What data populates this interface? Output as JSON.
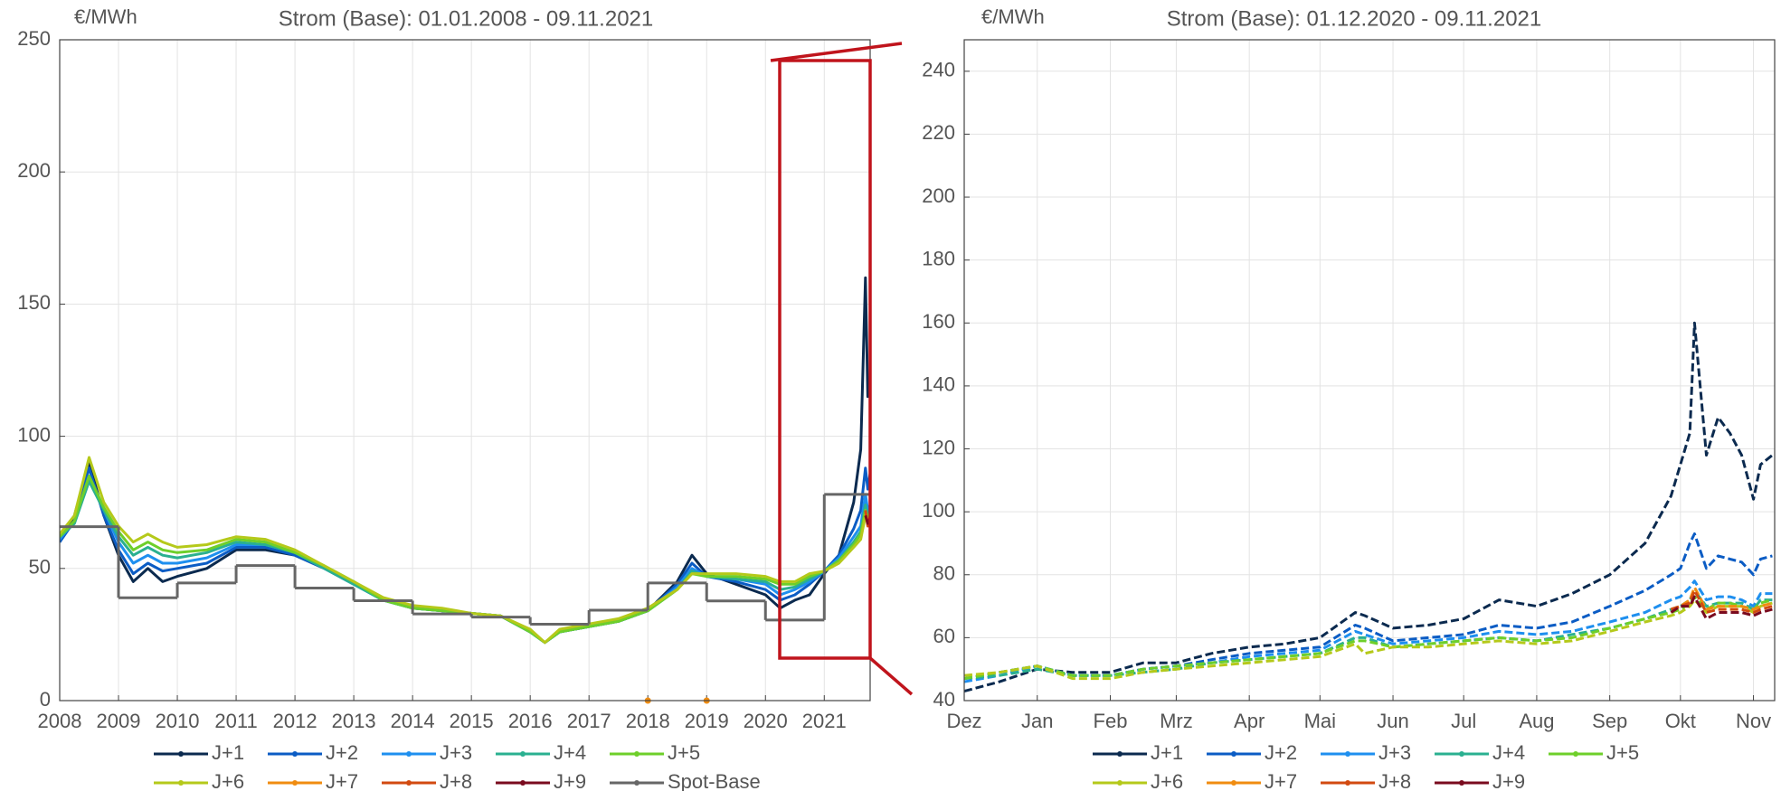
{
  "chart_data": [
    {
      "type": "line",
      "title": "Strom (Base): 01.01.2008 - 09.11.2021",
      "ylabel": "€/MWh",
      "xlim": [
        2008,
        2021.78
      ],
      "xticks": [
        2008,
        2009,
        2010,
        2011,
        2012,
        2013,
        2014,
        2015,
        2016,
        2017,
        2018,
        2019,
        2020,
        2021
      ],
      "ylim": [
        0,
        250
      ],
      "yticks": [
        0,
        50,
        100,
        150,
        200,
        250
      ],
      "grid": true,
      "line_style": "solid",
      "legend": "bottom",
      "x": [
        2008,
        2008.25,
        2008.5,
        2008.75,
        2009,
        2009.25,
        2009.5,
        2009.75,
        2010,
        2010.5,
        2011,
        2011.5,
        2012,
        2012.5,
        2013,
        2013.5,
        2014,
        2014.5,
        2015,
        2015.5,
        2016,
        2016.25,
        2016.5,
        2017,
        2017.5,
        2018,
        2018.5,
        2018.75,
        2019,
        2019.5,
        2020,
        2020.25,
        2020.5,
        2020.75,
        2021,
        2021.25,
        2021.5,
        2021.62,
        2021.7,
        2021.74,
        2021.78
      ],
      "series": [
        {
          "name": "J+1",
          "color": "#0b2a4f",
          "values": [
            60,
            70,
            90,
            70,
            55,
            45,
            50,
            45,
            47,
            50,
            57,
            57,
            55,
            50,
            45,
            38,
            36,
            34,
            33,
            32,
            26,
            22,
            26,
            28,
            30,
            34,
            45,
            55,
            48,
            44,
            40,
            35,
            38,
            40,
            48,
            55,
            75,
            95,
            160,
            115,
            118
          ]
        },
        {
          "name": "J+2",
          "color": "#0b5cc4",
          "values": [
            60,
            68,
            88,
            70,
            57,
            48,
            52,
            49,
            50,
            52,
            58,
            58,
            55,
            50,
            44,
            38,
            35,
            34,
            33,
            32,
            26,
            22,
            26,
            28,
            30,
            34,
            44,
            52,
            47,
            45,
            42,
            38,
            40,
            44,
            49,
            55,
            65,
            72,
            88,
            80,
            86
          ]
        },
        {
          "name": "J+3",
          "color": "#1e8fef",
          "values": [
            61,
            68,
            85,
            72,
            60,
            52,
            55,
            52,
            52,
            54,
            59,
            59,
            56,
            50,
            44,
            38,
            35,
            34,
            33,
            32,
            26,
            22,
            26,
            28,
            30,
            34,
            43,
            50,
            47,
            46,
            44,
            40,
            42,
            45,
            49,
            54,
            62,
            66,
            78,
            72,
            74
          ]
        },
        {
          "name": "J+4",
          "color": "#2ab090",
          "values": [
            62,
            67,
            83,
            72,
            62,
            55,
            58,
            55,
            54,
            56,
            60,
            59,
            56,
            50,
            44,
            38,
            35,
            34,
            33,
            32,
            26,
            22,
            26,
            28,
            30,
            34,
            42,
            49,
            47,
            46,
            45,
            42,
            43,
            46,
            49,
            53,
            60,
            64,
            74,
            70,
            72
          ]
        },
        {
          "name": "J+5",
          "color": "#6ecf2a",
          "values": [
            62,
            68,
            85,
            73,
            64,
            57,
            60,
            57,
            56,
            57,
            61,
            60,
            56,
            51,
            45,
            38,
            35,
            34,
            33,
            32,
            26,
            22,
            26,
            28,
            30,
            34,
            42,
            48,
            47,
            47,
            46,
            44,
            44,
            47,
            49,
            53,
            59,
            63,
            72,
            69,
            71
          ]
        },
        {
          "name": "J+6",
          "color": "#b5c91a",
          "values": [
            63,
            70,
            92,
            75,
            66,
            60,
            63,
            60,
            58,
            59,
            62,
            61,
            57,
            51,
            45,
            39,
            36,
            35,
            33,
            32,
            27,
            22,
            27,
            29,
            31,
            35,
            42,
            48,
            48,
            48,
            47,
            45,
            45,
            48,
            49,
            52,
            58,
            61,
            70,
            68,
            70
          ]
        },
        {
          "name": "J+7",
          "color": "#f08c10",
          "x": [
            2018,
            2018.5,
            2019
          ],
          "values": [
            0,
            null,
            0
          ]
        },
        {
          "name": "J+8",
          "color": "#d24a10",
          "x": [
            2021.7,
            2021.74,
            2021.78
          ],
          "values": [
            72,
            66,
            70
          ]
        },
        {
          "name": "J+9",
          "color": "#7a0a1e",
          "x": [
            2021.7,
            2021.74,
            2021.78
          ],
          "values": [
            70,
            67,
            69
          ]
        },
        {
          "name": "Spot-Base",
          "color": "#666666",
          "step": "post",
          "x": [
            2008,
            2009,
            2010,
            2011,
            2012,
            2013,
            2014,
            2015,
            2016,
            2017,
            2018,
            2019,
            2020,
            2021
          ],
          "values": [
            65.8,
            38.9,
            44.5,
            51.1,
            42.6,
            37.8,
            32.8,
            31.6,
            28.9,
            34.2,
            44.5,
            37.7,
            30.5,
            78
          ]
        }
      ]
    },
    {
      "type": "line",
      "title": "Strom (Base): 01.12.2020 - 09.11.2021",
      "ylabel": "€/MWh",
      "xlim": [
        0,
        344
      ],
      "xticks": [
        {
          "value": 0,
          "label": "Dez"
        },
        {
          "value": 31,
          "label": "Jan"
        },
        {
          "value": 62,
          "label": "Feb"
        },
        {
          "value": 90,
          "label": "Mrz"
        },
        {
          "value": 121,
          "label": "Apr"
        },
        {
          "value": 151,
          "label": "Mai"
        },
        {
          "value": 182,
          "label": "Jun"
        },
        {
          "value": 212,
          "label": "Jul"
        },
        {
          "value": 243,
          "label": "Aug"
        },
        {
          "value": 274,
          "label": "Sep"
        },
        {
          "value": 304,
          "label": "Okt"
        },
        {
          "value": 335,
          "label": "Nov"
        }
      ],
      "ylim": [
        40,
        250
      ],
      "yticks": [
        40,
        60,
        80,
        100,
        120,
        140,
        160,
        180,
        200,
        220,
        240
      ],
      "grid": true,
      "line_style": "dashed",
      "legend": "bottom",
      "x": [
        0,
        15,
        31,
        46,
        62,
        76,
        90,
        105,
        121,
        136,
        151,
        166,
        170,
        182,
        197,
        212,
        227,
        243,
        258,
        274,
        289,
        300,
        304,
        308,
        310,
        315,
        320,
        325,
        330,
        335,
        338,
        343
      ],
      "series": [
        {
          "name": "J+1",
          "color": "#0b2a4f",
          "values": [
            43,
            46,
            50,
            49,
            49,
            52,
            52,
            55,
            57,
            58,
            60,
            68,
            67,
            63,
            64,
            66,
            72,
            70,
            74,
            80,
            90,
            105,
            115,
            125,
            160,
            118,
            130,
            125,
            118,
            104,
            115,
            118
          ]
        },
        {
          "name": "J+2",
          "color": "#0b5cc4",
          "values": [
            47,
            49,
            51,
            48,
            48,
            50,
            51,
            53,
            55,
            56,
            57,
            64,
            63,
            59,
            60,
            61,
            64,
            63,
            65,
            70,
            75,
            80,
            82,
            90,
            93,
            82,
            86,
            85,
            84,
            80,
            85,
            86
          ]
        },
        {
          "name": "J+3",
          "color": "#1e8fef",
          "values": [
            46,
            48,
            51,
            48,
            48,
            50,
            51,
            52,
            54,
            55,
            56,
            62,
            61,
            58,
            59,
            60,
            62,
            61,
            62,
            65,
            68,
            72,
            73,
            76,
            78,
            72,
            73,
            73,
            72,
            70,
            74,
            74
          ]
        },
        {
          "name": "J+4",
          "color": "#2ab090",
          "values": [
            47,
            48,
            50,
            48,
            48,
            49,
            50,
            52,
            53,
            54,
            55,
            60,
            60,
            57,
            58,
            59,
            60,
            59,
            61,
            63,
            66,
            69,
            70,
            72,
            75,
            70,
            71,
            71,
            71,
            69,
            72,
            72
          ]
        },
        {
          "name": "J+5",
          "color": "#6ecf2a",
          "values": [
            47,
            49,
            51,
            48,
            48,
            50,
            51,
            52,
            53,
            54,
            55,
            59,
            59,
            57,
            58,
            59,
            60,
            59,
            60,
            63,
            66,
            68,
            69,
            71,
            73,
            69,
            71,
            71,
            70,
            69,
            71,
            72
          ]
        },
        {
          "name": "J+6",
          "color": "#b5c91a",
          "values": [
            48,
            49,
            51,
            47,
            47,
            49,
            50,
            51,
            52,
            53,
            54,
            58,
            55,
            57,
            57,
            58,
            59,
            58,
            59,
            62,
            65,
            67,
            68,
            70,
            72,
            68,
            70,
            70,
            70,
            68,
            70,
            71
          ]
        },
        {
          "name": "J+7",
          "color": "#f08c10",
          "x": [
            300,
            304,
            308,
            310,
            315,
            320,
            325,
            330,
            335,
            338,
            343
          ],
          "values": [
            69,
            70,
            72,
            76,
            69,
            70,
            70,
            70,
            69,
            70,
            71
          ]
        },
        {
          "name": "J+8",
          "color": "#d24a10",
          "x": [
            300,
            304,
            308,
            310,
            315,
            320,
            325,
            330,
            335,
            338,
            343
          ],
          "values": [
            69,
            70,
            71,
            75,
            68,
            69,
            69,
            69,
            68,
            69,
            70
          ]
        },
        {
          "name": "J+9",
          "color": "#7a0a1e",
          "x": [
            300,
            304,
            308,
            310,
            315,
            320,
            325,
            330,
            335,
            338,
            343
          ],
          "values": [
            68,
            70,
            70,
            73,
            66,
            68,
            68,
            68,
            67,
            68,
            69
          ]
        }
      ]
    }
  ]
}
